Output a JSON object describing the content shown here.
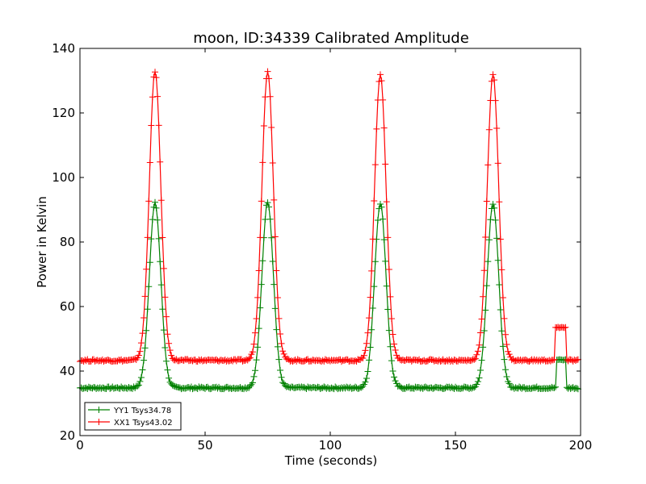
{
  "chart_data": {
    "type": "line",
    "title": "moon, ID:34339 Calibrated Amplitude",
    "xlabel": "Time (seconds)",
    "ylabel": "Power in Kelvin",
    "xlim": [
      0,
      200
    ],
    "ylim": [
      20,
      140
    ],
    "xticks": [
      0,
      50,
      100,
      150,
      200
    ],
    "yticks": [
      20,
      40,
      60,
      80,
      100,
      120,
      140
    ],
    "grid": false,
    "legend_position": "lower-left",
    "marker": "+",
    "series": [
      {
        "name": "YY1 Tsys34.78",
        "color": "#008000",
        "baseline": 34.8,
        "peaks": [
          {
            "x": 30,
            "y": 92
          },
          {
            "x": 75,
            "y": 92.5
          },
          {
            "x": 120,
            "y": 92
          },
          {
            "x": 165,
            "y": 92
          }
        ],
        "plateau": {
          "x_start": 190.5,
          "x_end": 194,
          "y": 43.5
        },
        "x_end": 199
      },
      {
        "name": "XX1 Tsys43.02",
        "color": "#ff0000",
        "baseline": 43.3,
        "peaks": [
          {
            "x": 30,
            "y": 133
          },
          {
            "x": 75,
            "y": 133
          },
          {
            "x": 120,
            "y": 132
          },
          {
            "x": 165,
            "y": 132
          }
        ],
        "plateau": {
          "x_start": 190,
          "x_end": 194,
          "y": 53.5
        },
        "x_end": 199
      }
    ]
  }
}
